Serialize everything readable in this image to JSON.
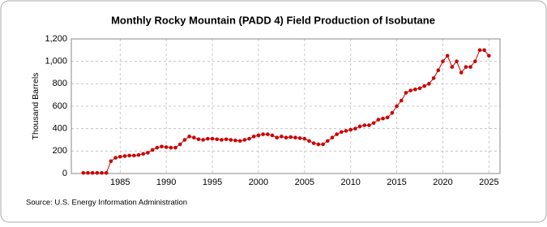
{
  "chart_data": {
    "type": "line",
    "title": "Monthly Rocky Mountain (PADD 4) Field Production of Isobutane",
    "y_label": "Thousand Barrels",
    "source": "Source: U.S. Energy Information Administration",
    "series": [
      {
        "name": "Isobutane",
        "color": "#cc0000",
        "x": [
          1981,
          1981.5,
          1982,
          1982.5,
          1983,
          1983.5,
          1984,
          1984.5,
          1985,
          1985.5,
          1986,
          1986.5,
          1987,
          1987.5,
          1988,
          1988.5,
          1989,
          1989.5,
          1990,
          1990.5,
          1991,
          1991.5,
          1992,
          1992.5,
          1993,
          1993.5,
          1994,
          1994.5,
          1995,
          1995.5,
          1996,
          1996.5,
          1997,
          1997.5,
          1998,
          1998.5,
          1999,
          1999.5,
          2000,
          2000.5,
          2001,
          2001.5,
          2002,
          2002.5,
          2003,
          2003.5,
          2004,
          2004.5,
          2005,
          2005.5,
          2006,
          2006.5,
          2007,
          2007.5,
          2008,
          2008.5,
          2009,
          2009.5,
          2010,
          2010.5,
          2011,
          2011.5,
          2012,
          2012.5,
          2013,
          2013.5,
          2014,
          2014.5,
          2015,
          2015.5,
          2016,
          2016.5,
          2017,
          2017.5,
          2018,
          2018.5,
          2019,
          2019.5,
          2020,
          2020.5,
          2021,
          2021.5,
          2022,
          2022.5,
          2023,
          2023.5,
          2024,
          2024.5,
          2025
        ],
        "values": [
          5,
          5,
          5,
          5,
          5,
          5,
          110,
          140,
          150,
          155,
          160,
          160,
          165,
          175,
          185,
          210,
          230,
          240,
          235,
          230,
          230,
          260,
          300,
          330,
          320,
          305,
          300,
          310,
          310,
          305,
          300,
          305,
          300,
          295,
          290,
          300,
          310,
          330,
          340,
          350,
          350,
          340,
          320,
          330,
          320,
          325,
          320,
          315,
          310,
          290,
          270,
          260,
          260,
          290,
          320,
          350,
          370,
          380,
          390,
          400,
          420,
          430,
          430,
          450,
          480,
          490,
          500,
          540,
          600,
          650,
          720,
          740,
          750,
          760,
          780,
          800,
          850,
          920,
          1000,
          1050,
          950,
          1000,
          900,
          950,
          950,
          1000,
          1100,
          1100,
          1050
        ]
      }
    ],
    "xlim": [
      1979.7,
      2026.2
    ],
    "xticks": [
      1985,
      1990,
      1995,
      2000,
      2005,
      2010,
      2015,
      2020,
      2025
    ],
    "ylim": [
      0,
      1200
    ],
    "yticks": [
      0,
      200,
      400,
      600,
      800,
      {
        "value": 1000,
        "label": "1,000"
      },
      {
        "value": 1200,
        "label": "1,200"
      }
    ],
    "grid": true
  }
}
